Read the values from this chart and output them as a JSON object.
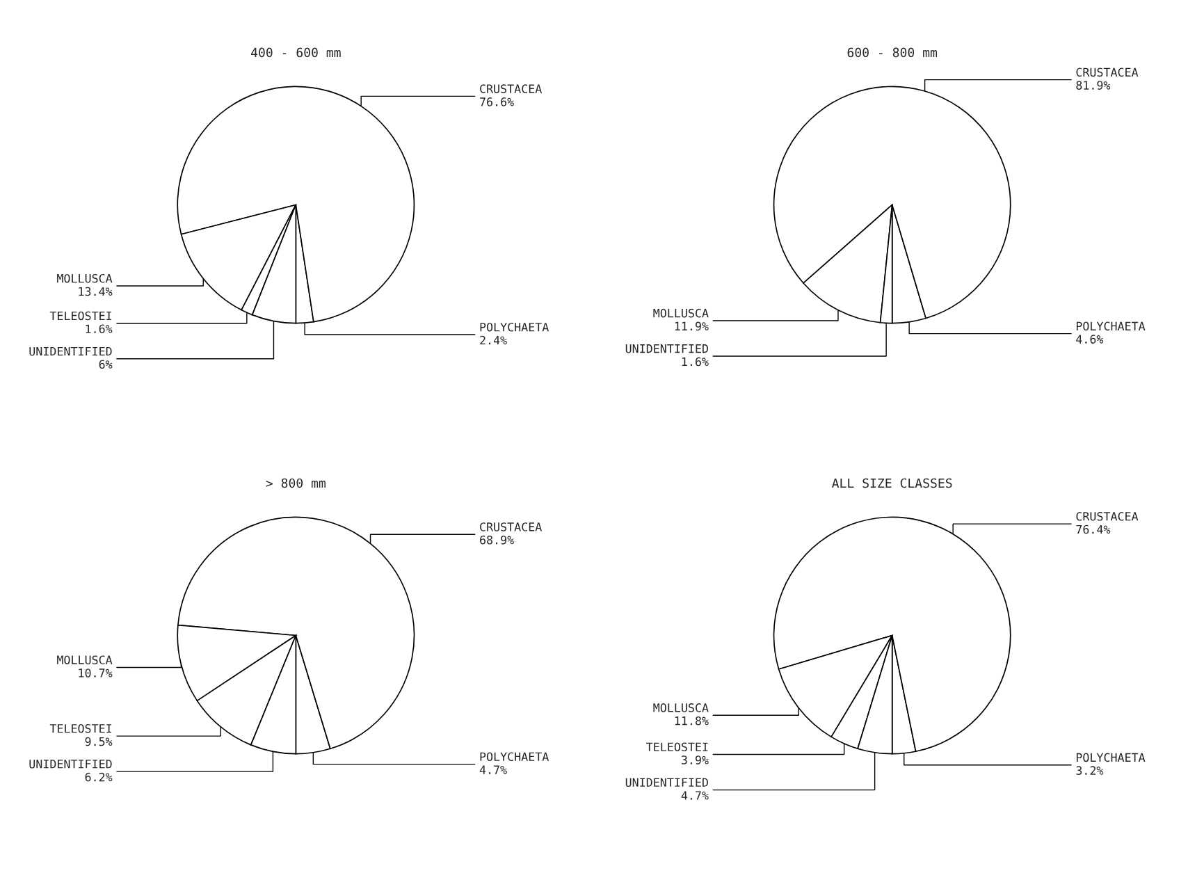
{
  "chart_data": [
    {
      "type": "pie",
      "title": "400 - 600 mm",
      "categories": [
        "POLYCHAETA",
        "CRUSTACEA",
        "MOLLUSCA",
        "TELEOSTEI",
        "UNIDENTIFIED"
      ],
      "values": [
        2.4,
        76.6,
        13.4,
        1.6,
        6
      ],
      "value_labels": [
        "2.4%",
        "76.6%",
        "13.4%",
        "1.6%",
        "6%"
      ],
      "colors": [
        "#ffffff",
        "#ffffff",
        "#ffffff",
        "#ffffff",
        "#ffffff"
      ]
    },
    {
      "type": "pie",
      "title": "600 - 800 mm",
      "categories": [
        "POLYCHAETA",
        "CRUSTACEA",
        "MOLLUSCA",
        "UNIDENTIFIED"
      ],
      "values": [
        4.6,
        81.9,
        11.9,
        1.6
      ],
      "value_labels": [
        "4.6%",
        "81.9%",
        "11.9%",
        "1.6%"
      ],
      "colors": [
        "#ffffff",
        "#ffffff",
        "#ffffff",
        "#ffffff"
      ]
    },
    {
      "type": "pie",
      "title": "> 800 mm",
      "categories": [
        "POLYCHAETA",
        "CRUSTACEA",
        "MOLLUSCA",
        "TELEOSTEI",
        "UNIDENTIFIED"
      ],
      "values": [
        4.7,
        68.9,
        10.7,
        9.5,
        6.2
      ],
      "value_labels": [
        "4.7%",
        "68.9%",
        "10.7%",
        "9.5%",
        "6.2%"
      ],
      "colors": [
        "#ffffff",
        "#ffffff",
        "#ffffff",
        "#ffffff",
        "#ffffff"
      ]
    },
    {
      "type": "pie",
      "title": "ALL SIZE CLASSES",
      "categories": [
        "POLYCHAETA",
        "CRUSTACEA",
        "MOLLUSCA",
        "TELEOSTEI",
        "UNIDENTIFIED"
      ],
      "values": [
        3.2,
        76.4,
        11.8,
        3.9,
        4.7
      ],
      "value_labels": [
        "3.2%",
        "76.4%",
        "11.8%",
        "3.9%",
        "4.7%"
      ],
      "colors": [
        "#ffffff",
        "#ffffff",
        "#ffffff",
        "#ffffff",
        "#ffffff"
      ]
    }
  ]
}
